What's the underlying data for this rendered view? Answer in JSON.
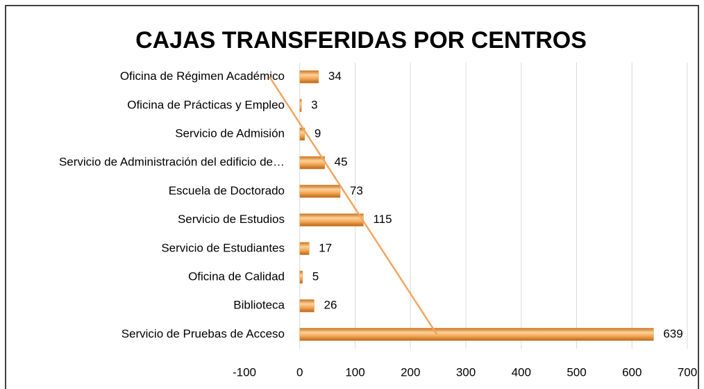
{
  "chart_data": {
    "type": "bar",
    "orientation": "horizontal",
    "title": "CAJAS  TRANSFERIDAS POR  CENTROS",
    "categories": [
      "Oficina de Régimen Académico",
      "Oficina de Prácticas y Empleo",
      "Servicio de Admisión",
      "Servicio de Administración del edificio de…",
      "Escuela de Doctorado",
      "Servicio de Estudios",
      "Servicio de Estudiantes",
      "Oficina de Calidad",
      "Biblioteca",
      "Servicio de Pruebas de Acceso"
    ],
    "values": [
      34,
      3,
      9,
      45,
      73,
      115,
      17,
      5,
      26,
      639
    ],
    "color": "#e8953a",
    "trendline": true,
    "trendline_color": "#f4a460",
    "xlim": [
      -100,
      700
    ],
    "xticks": [
      -100,
      0,
      100,
      200,
      300,
      400,
      500,
      600,
      700
    ],
    "grid": true
  }
}
